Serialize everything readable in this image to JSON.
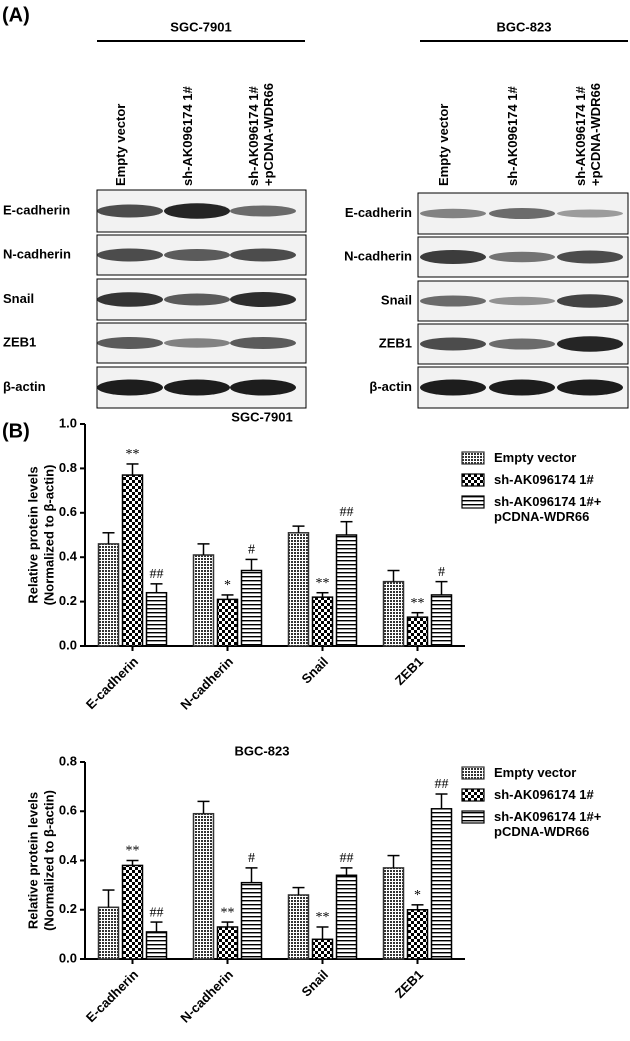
{
  "panel_a": {
    "label": "(A)",
    "blots": [
      {
        "cell_line": "SGC-7901",
        "lanes": [
          "Empty vector",
          "sh-AK096174 1#",
          "sh-AK096174 1# +pCDNA-WDR66"
        ],
        "proteins": [
          "E-cadherin",
          "N-cadherin",
          "Snail",
          "ZEB1",
          "β-actin"
        ]
      },
      {
        "cell_line": "BGC-823",
        "lanes": [
          "Empty vector",
          "sh-AK096174 1#",
          "sh-AK096174 1# +pCDNA-WDR66"
        ],
        "proteins": [
          "E-cadherin",
          "N-cadherin",
          "Snail",
          "ZEB1",
          "β-actin"
        ]
      }
    ]
  },
  "panel_b": {
    "label": "(B)"
  },
  "chart_data": [
    {
      "type": "bar",
      "title": "SGC-7901",
      "ylabel": [
        "Relative protein levels",
        "(Normalized to β-actin)"
      ],
      "categories": [
        "E-cadherin",
        "N-cadherin",
        "Snail",
        "ZEB1"
      ],
      "series": [
        {
          "name": "Empty vector",
          "color": "#333333",
          "values": [
            0.46,
            0.41,
            0.51,
            0.29
          ],
          "errors": [
            0.05,
            0.05,
            0.03,
            0.05
          ]
        },
        {
          "name": "sh-AK096174 1#",
          "color": "#000000",
          "values": [
            0.77,
            0.21,
            0.22,
            0.13
          ],
          "errors": [
            0.05,
            0.02,
            0.02,
            0.02
          ],
          "annotations": [
            "**",
            "*",
            "**",
            "**"
          ]
        },
        {
          "name": "sh-AK096174 1#+ pCDNA-WDR66",
          "color": "#000000",
          "values": [
            0.24,
            0.34,
            0.5,
            0.23
          ],
          "errors": [
            0.04,
            0.05,
            0.06,
            0.06
          ],
          "annotations": [
            "##",
            "#",
            "##",
            "#"
          ]
        }
      ],
      "ylim": [
        0,
        1
      ],
      "yticks": [
        {
          "value": 0,
          "label": "0.0"
        },
        0.2,
        0.4,
        0.6,
        0.8,
        {
          "value": 1,
          "label": "1.0"
        }
      ],
      "legend": "upper right"
    },
    {
      "type": "bar",
      "title": "BGC-823",
      "ylabel": [
        "Relative protein levels",
        "(Normalized to β-actin)"
      ],
      "categories": [
        "E-cadherin",
        "N-cadherin",
        "Snail",
        "ZEB1"
      ],
      "series": [
        {
          "name": "Empty vector",
          "color": "#333333",
          "values": [
            0.21,
            0.59,
            0.26,
            0.37
          ],
          "errors": [
            0.07,
            0.05,
            0.03,
            0.05
          ]
        },
        {
          "name": "sh-AK096174 1#",
          "color": "#000000",
          "values": [
            0.38,
            0.13,
            0.08,
            0.2
          ],
          "errors": [
            0.02,
            0.02,
            0.05,
            0.02
          ],
          "annotations": [
            "**",
            "**",
            "**",
            "*"
          ]
        },
        {
          "name": "sh-AK096174 1#+ pCDNA-WDR66",
          "color": "#000000",
          "values": [
            0.11,
            0.31,
            0.34,
            0.61
          ],
          "errors": [
            0.04,
            0.06,
            0.03,
            0.06
          ],
          "annotations": [
            "##",
            "#",
            "##",
            "##"
          ]
        }
      ],
      "ylim": [
        0,
        0.8
      ],
      "yticks": [
        {
          "value": 0,
          "label": "0.0"
        },
        0.2,
        0.4,
        0.6,
        0.8
      ],
      "legend": "upper right"
    }
  ]
}
